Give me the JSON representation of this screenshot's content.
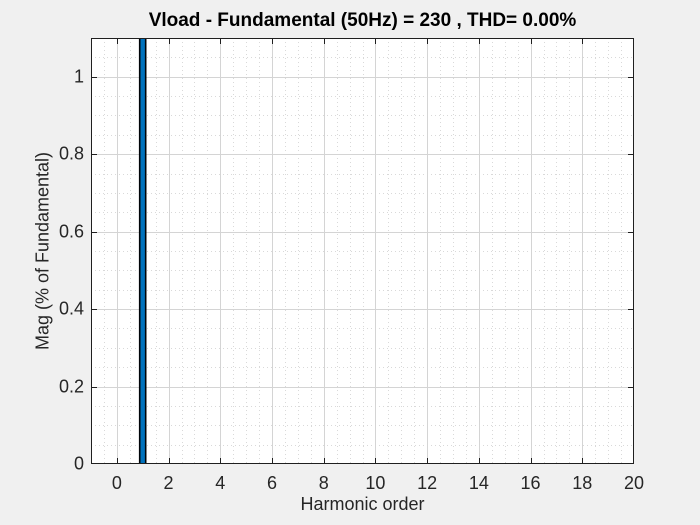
{
  "chart_data": {
    "type": "bar",
    "title": "Vload - Fundamental (50Hz) = 230 , THD= 0.00%",
    "xlabel": "Harmonic order",
    "ylabel": "Mag (% of Fundamental)",
    "xlim": [
      -1,
      20
    ],
    "ylim": [
      0,
      1.1
    ],
    "x_ticks": [
      0,
      2,
      4,
      6,
      8,
      10,
      12,
      14,
      16,
      18,
      20
    ],
    "x_tick_labels": [
      "0",
      "2",
      "4",
      "6",
      "8",
      "10",
      "12",
      "14",
      "16",
      "18",
      "20"
    ],
    "y_ticks": [
      0,
      0.2,
      0.4,
      0.6,
      0.8,
      1
    ],
    "y_tick_labels": [
      "0",
      "0.2",
      "0.4",
      "0.6",
      "0.8",
      "1"
    ],
    "x_minor_step": 0.5,
    "y_minor_step": 0.05,
    "grid": "on",
    "minor_grid": "on",
    "legend": "none",
    "bars": [
      {
        "x": 1,
        "value": 100,
        "clipped_at_axes_top": true
      }
    ],
    "signal_name": "Vload",
    "fundamental_freq_hz": 50,
    "fundamental_magnitude": 230,
    "thd_percent": "0.00"
  },
  "colors": {
    "figure_bg": "#f0f0f0",
    "plot_bg": "#ffffff",
    "axis_box": "#1f1f1f",
    "tick": "#1f1f1f",
    "grid_major": "#d4d4d4",
    "grid_minor": "#d9d9d9",
    "label_text": "#262626",
    "title_text": "#000000",
    "bar_fill": "#0072bd",
    "bar_edge": "#000408"
  }
}
